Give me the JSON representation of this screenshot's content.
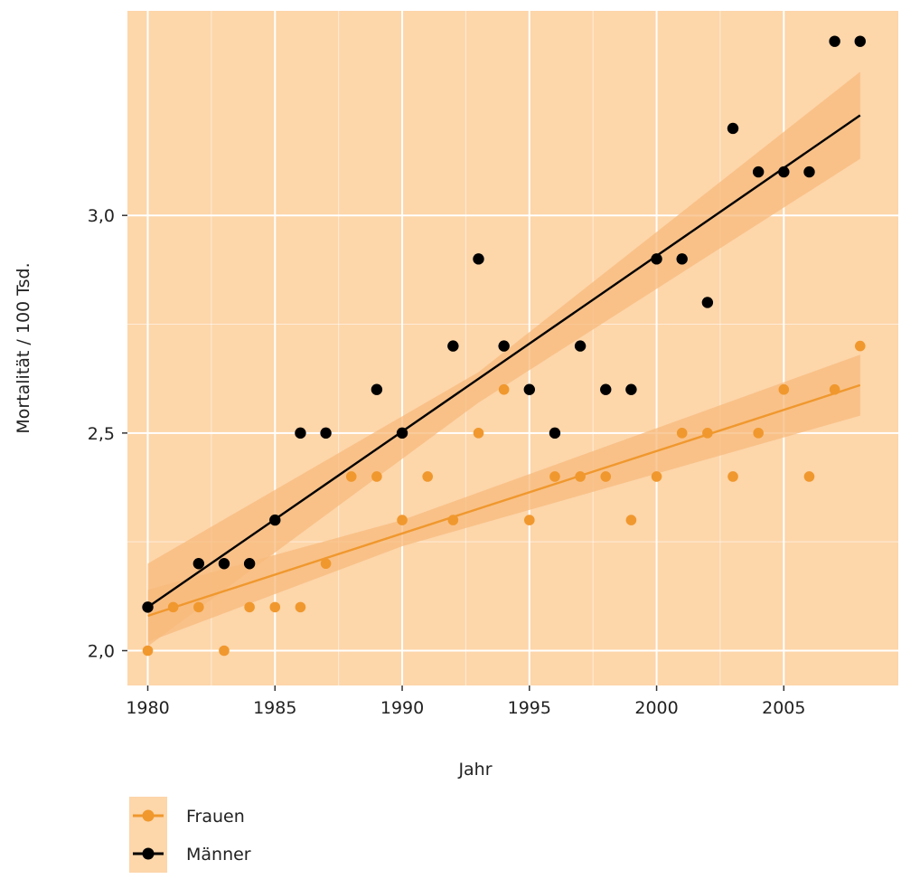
{
  "chart_data": {
    "type": "scatter",
    "title": "",
    "xlabel": "Jahr",
    "ylabel": "Mortalität / 100 Tsd.",
    "xlim": [
      1979.2,
      2009.5
    ],
    "ylim": [
      1.92,
      3.47
    ],
    "x_ticks": [
      1980,
      1985,
      1990,
      1995,
      2000,
      2005
    ],
    "x_tick_labels": [
      "1980",
      "1985",
      "1990",
      "1995",
      "2000",
      "2005"
    ],
    "y_ticks": [
      2.0,
      2.5,
      3.0
    ],
    "y_tick_labels": [
      "2,0",
      "2,5",
      "3,0"
    ],
    "grid": true,
    "legend_position": "bottom-left",
    "series": [
      {
        "name": "Frauen",
        "color": "#f0982e",
        "points": [
          [
            1980,
            2.0
          ],
          [
            1981,
            2.1
          ],
          [
            1982,
            2.1
          ],
          [
            1983,
            2.0
          ],
          [
            1984,
            2.1
          ],
          [
            1985,
            2.1
          ],
          [
            1986,
            2.1
          ],
          [
            1987,
            2.2
          ],
          [
            1988,
            2.4
          ],
          [
            1989,
            2.4
          ],
          [
            1990,
            2.3
          ],
          [
            1991,
            2.4
          ],
          [
            1992,
            2.3
          ],
          [
            1993,
            2.5
          ],
          [
            1994,
            2.6
          ],
          [
            1995,
            2.3
          ],
          [
            1996,
            2.4
          ],
          [
            1997,
            2.4
          ],
          [
            1998,
            2.4
          ],
          [
            1999,
            2.3
          ],
          [
            2000,
            2.4
          ],
          [
            2001,
            2.5
          ],
          [
            2002,
            2.5
          ],
          [
            2003,
            2.4
          ],
          [
            2004,
            2.5
          ],
          [
            2005,
            2.6
          ],
          [
            2006,
            2.4
          ],
          [
            2007,
            2.6
          ],
          [
            2008,
            2.7
          ]
        ],
        "trend": {
          "x": [
            1980,
            2008
          ],
          "y": [
            2.08,
            2.61
          ]
        },
        "band": {
          "x": [
            1980,
            1990,
            2008
          ],
          "lower": [
            2.02,
            2.24,
            2.54
          ],
          "upper": [
            2.14,
            2.3,
            2.68
          ]
        }
      },
      {
        "name": "Männer",
        "color": "#000000",
        "points": [
          [
            1980,
            2.1
          ],
          [
            1982,
            2.2
          ],
          [
            1983,
            2.2
          ],
          [
            1984,
            2.2
          ],
          [
            1985,
            2.3
          ],
          [
            1986,
            2.5
          ],
          [
            1987,
            2.5
          ],
          [
            1989,
            2.6
          ],
          [
            1990,
            2.5
          ],
          [
            1992,
            2.7
          ],
          [
            1993,
            2.9
          ],
          [
            1994,
            2.7
          ],
          [
            1995,
            2.6
          ],
          [
            1996,
            2.5
          ],
          [
            1997,
            2.7
          ],
          [
            1998,
            2.6
          ],
          [
            1999,
            2.6
          ],
          [
            2000,
            2.9
          ],
          [
            2001,
            2.9
          ],
          [
            2002,
            2.8
          ],
          [
            2003,
            3.2
          ],
          [
            2004,
            3.1
          ],
          [
            2005,
            3.1
          ],
          [
            2006,
            3.1
          ],
          [
            2007,
            3.4
          ],
          [
            2008,
            3.4
          ]
        ],
        "trend": {
          "x": [
            1980,
            2008
          ],
          "y": [
            2.1,
            3.23
          ]
        },
        "band": {
          "x": [
            1980,
            1993,
            2008
          ],
          "lower": [
            2.01,
            2.57,
            3.13
          ],
          "upper": [
            2.2,
            2.64,
            3.33
          ]
        }
      }
    ],
    "colors": {
      "panel_background": "#fdd6aa",
      "band_fill": "#f7ba7c",
      "grid": "#ffffff"
    }
  }
}
